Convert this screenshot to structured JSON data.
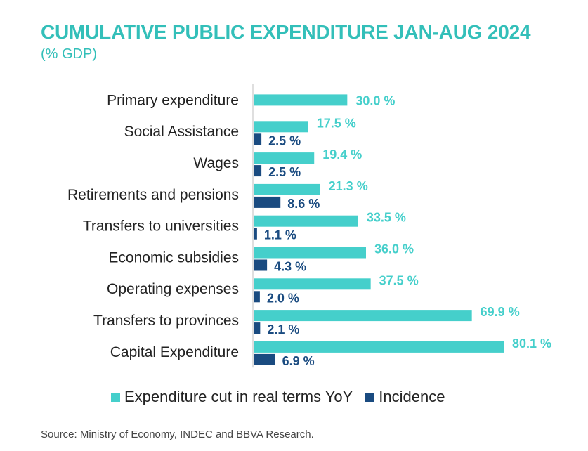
{
  "title": "CUMULATIVE PUBLIC EXPENDITURE JAN-AUG 2024",
  "subtitle": "(% GDP)",
  "source": "Source: Ministry of Economy, INDEC and BBVA Research.",
  "colors": {
    "title": "#33bfb9",
    "cut": "#45cfcb",
    "incidence": "#1a4b80",
    "axis": "#bfbfbf"
  },
  "chart_data": {
    "type": "bar",
    "orientation": "horizontal",
    "categories": [
      "Primary expenditure",
      "Social Assistance",
      "Wages",
      "Retirements and pensions",
      "Transfers to universities",
      "Economic subsidies",
      "Operating expenses",
      "Transfers to provinces",
      "Capital Expenditure"
    ],
    "series": [
      {
        "name": "Expenditure cut in real terms YoY",
        "values": [
          30.0,
          17.5,
          19.4,
          21.3,
          33.5,
          36.0,
          37.5,
          69.9,
          80.1
        ],
        "labels": [
          "30.0 %",
          "17.5 %",
          "19.4 %",
          "21.3 %",
          "33.5 %",
          "36.0 %",
          "37.5 %",
          "69.9 %",
          "80.1 %"
        ]
      },
      {
        "name": "Incidence",
        "values": [
          null,
          2.5,
          2.5,
          8.6,
          1.1,
          4.3,
          2.0,
          2.1,
          6.9
        ],
        "labels": [
          "",
          "2.5 %",
          "2.5 %",
          "8.6 %",
          "1.1 %",
          "4.3 %",
          "2.0 %",
          "2.1 %",
          "6.9 %"
        ]
      }
    ],
    "xlim": [
      0,
      80.1
    ],
    "grid": false,
    "legend": "bottom"
  }
}
